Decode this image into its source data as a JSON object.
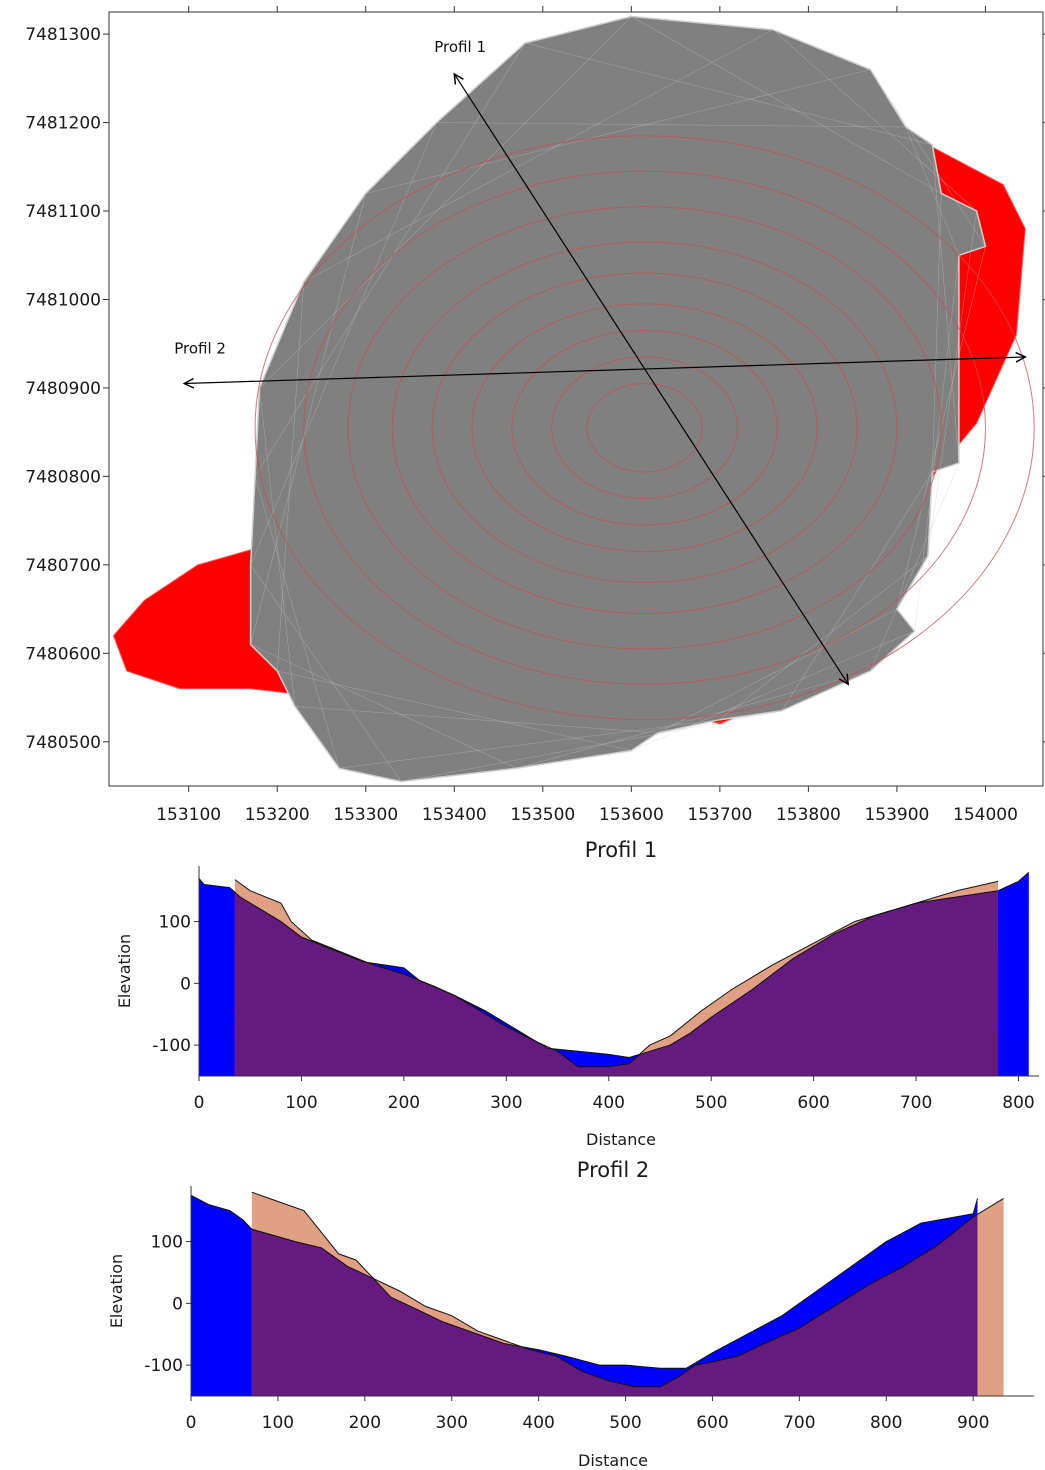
{
  "colors": {
    "pit_fill": "#808080",
    "pit_mesh": "#c8c8c8",
    "pit_contours": "#c0504d",
    "outer_shell": "#ff0000",
    "profile_a_top": "#0000ff",
    "profile_b_top": "#e0a084",
    "overlap": "#641a7e",
    "arrow": "#000000"
  },
  "chart_data": [
    {
      "type": "map",
      "xlim": [
        153010,
        154065
      ],
      "ylim": [
        7480450,
        7481325
      ],
      "xticks": [
        153100,
        153200,
        153300,
        153400,
        153500,
        153600,
        153700,
        153800,
        153900,
        154000
      ],
      "xtick_labels": [
        "153100",
        "153200",
        "153300",
        "153400",
        "153500",
        "153600",
        "153700",
        "153800",
        "153900",
        "154000"
      ],
      "yticks": [
        7480500,
        7480600,
        7480700,
        7480800,
        7480900,
        7481000,
        7481100,
        7481200,
        7481300
      ],
      "ytick_labels": [
        "7480500",
        "7480600",
        "7480700",
        "7480800",
        "7480900",
        "7481000",
        "7481100",
        "7481200",
        "7481300"
      ],
      "profiles": [
        {
          "name": "Profil 1",
          "from": [
            153400,
            7481255
          ],
          "to": [
            153845,
            7480565
          ]
        },
        {
          "name": "Profil 2",
          "from": [
            153095,
            7480905
          ],
          "to": [
            154045,
            7480935
          ]
        }
      ],
      "red_outline": [
        [
          153935,
          7481175
        ],
        [
          154020,
          7481130
        ],
        [
          154045,
          7481080
        ],
        [
          154035,
          7480960
        ],
        [
          153990,
          7480860
        ],
        [
          153940,
          7480800
        ],
        [
          153860,
          7480590
        ],
        [
          153700,
          7480520
        ],
        [
          153620,
          7480545
        ],
        [
          153300,
          7480545
        ],
        [
          153170,
          7480560
        ],
        [
          153090,
          7480560
        ],
        [
          153030,
          7480580
        ],
        [
          153015,
          7480620
        ],
        [
          153050,
          7480660
        ],
        [
          153110,
          7480700
        ],
        [
          153180,
          7480720
        ],
        [
          153260,
          7480760
        ],
        [
          153600,
          7481000
        ]
      ],
      "grey_outline": [
        [
          153600,
          7481320
        ],
        [
          153760,
          7481305
        ],
        [
          153870,
          7481260
        ],
        [
          153910,
          7481195
        ],
        [
          153940,
          7481175
        ],
        [
          153950,
          7481120
        ],
        [
          153990,
          7481100
        ],
        [
          154000,
          7481060
        ],
        [
          153970,
          7481050
        ],
        [
          153970,
          7480815
        ],
        [
          153940,
          7480805
        ],
        [
          153935,
          7480710
        ],
        [
          153900,
          7480650
        ],
        [
          153920,
          7480625
        ],
        [
          153870,
          7480580
        ],
        [
          153770,
          7480535
        ],
        [
          153700,
          7480525
        ],
        [
          153630,
          7480510
        ],
        [
          153600,
          7480490
        ],
        [
          153470,
          7480470
        ],
        [
          153340,
          7480455
        ],
        [
          153270,
          7480470
        ],
        [
          153220,
          7480540
        ],
        [
          153200,
          7480580
        ],
        [
          153170,
          7480610
        ],
        [
          153170,
          7480700
        ],
        [
          153175,
          7480800
        ],
        [
          153180,
          7480900
        ],
        [
          153230,
          7481020
        ],
        [
          153300,
          7481120
        ],
        [
          153380,
          7481200
        ],
        [
          153480,
          7481290
        ]
      ],
      "contour_rings": [
        {
          "cx": 153615,
          "cy": 7480855,
          "rx": 440,
          "ry": 330
        },
        {
          "cx": 153615,
          "cy": 7480855,
          "rx": 385,
          "ry": 290
        },
        {
          "cx": 153615,
          "cy": 7480855,
          "rx": 335,
          "ry": 250
        },
        {
          "cx": 153615,
          "cy": 7480855,
          "rx": 285,
          "ry": 210
        },
        {
          "cx": 153615,
          "cy": 7480855,
          "rx": 240,
          "ry": 175
        },
        {
          "cx": 153615,
          "cy": 7480855,
          "rx": 195,
          "ry": 140
        },
        {
          "cx": 153615,
          "cy": 7480855,
          "rx": 150,
          "ry": 110
        },
        {
          "cx": 153615,
          "cy": 7480855,
          "rx": 105,
          "ry": 80
        },
        {
          "cx": 153615,
          "cy": 7480855,
          "rx": 65,
          "ry": 50
        }
      ]
    },
    {
      "type": "area",
      "title": "Profil 1",
      "xlabel": "Distance",
      "ylabel": "Elevation",
      "xlim": [
        0,
        820
      ],
      "ylim": [
        -150,
        190
      ],
      "xticks": [
        0,
        100,
        200,
        300,
        400,
        500,
        600,
        700,
        800
      ],
      "xtick_labels": [
        "0",
        "100",
        "200",
        "300",
        "400",
        "500",
        "600",
        "700",
        "800"
      ],
      "yticks": [
        -100,
        0,
        100
      ],
      "ytick_labels": [
        "-100",
        "0",
        "100"
      ],
      "base": -150,
      "series": [
        {
          "x": [
            0,
            5,
            15,
            30,
            40,
            60,
            80,
            100,
            130,
            160,
            200,
            215,
            250,
            280,
            310,
            340,
            370,
            400,
            420,
            440,
            460,
            480,
            500,
            540,
            580,
            620,
            660,
            700,
            740,
            780,
            800,
            810
          ],
          "y": [
            170,
            160,
            158,
            155,
            140,
            120,
            100,
            75,
            55,
            35,
            25,
            5,
            -20,
            -45,
            -75,
            -105,
            -110,
            -115,
            -120,
            -110,
            -100,
            -80,
            -55,
            -10,
            40,
            80,
            110,
            130,
            140,
            150,
            165,
            180
          ]
        },
        {
          "x": [
            35,
            50,
            80,
            90,
            110,
            140,
            170,
            200,
            230,
            250,
            270,
            300,
            330,
            350,
            370,
            400,
            420,
            440,
            460,
            490,
            520,
            560,
            600,
            640,
            660,
            700,
            740,
            780
          ],
          "y": [
            168,
            150,
            130,
            100,
            70,
            50,
            30,
            15,
            -5,
            -20,
            -40,
            -70,
            -95,
            -110,
            -135,
            -135,
            -130,
            -100,
            -85,
            -45,
            -10,
            30,
            65,
            100,
            110,
            130,
            150,
            165
          ]
        }
      ]
    },
    {
      "type": "area",
      "title": "Profil 2",
      "xlabel": "Distance",
      "ylabel": "Elevation",
      "xlim": [
        0,
        970
      ],
      "ylim": [
        -150,
        190
      ],
      "xticks": [
        0,
        100,
        200,
        300,
        400,
        500,
        600,
        700,
        800,
        900
      ],
      "xtick_labels": [
        "0",
        "100",
        "200",
        "300",
        "400",
        "500",
        "600",
        "700",
        "800",
        "900"
      ],
      "yticks": [
        -100,
        0,
        100
      ],
      "ytick_labels": [
        "-100",
        "0",
        "100"
      ],
      "base": -150,
      "series": [
        {
          "x": [
            0,
            20,
            45,
            60,
            70,
            120,
            150,
            180,
            210,
            230,
            260,
            290,
            320,
            360,
            400,
            430,
            470,
            500,
            540,
            570,
            600,
            640,
            680,
            720,
            760,
            800,
            840,
            880,
            900,
            905
          ],
          "y": [
            175,
            160,
            150,
            135,
            120,
            100,
            90,
            60,
            40,
            10,
            -10,
            -30,
            -45,
            -65,
            -75,
            -85,
            -100,
            -100,
            -105,
            -105,
            -80,
            -50,
            -20,
            20,
            60,
            100,
            130,
            140,
            145,
            170
          ]
        },
        {
          "x": [
            70,
            90,
            130,
            170,
            190,
            210,
            240,
            270,
            300,
            330,
            360,
            390,
            420,
            450,
            480,
            510,
            540,
            560,
            580,
            600,
            630,
            660,
            700,
            740,
            780,
            820,
            860,
            900,
            935
          ],
          "y": [
            180,
            170,
            150,
            80,
            70,
            40,
            20,
            -5,
            -20,
            -45,
            -60,
            -75,
            -85,
            -110,
            -125,
            -135,
            -135,
            -120,
            -100,
            -95,
            -85,
            -65,
            -40,
            -5,
            30,
            60,
            95,
            140,
            170
          ]
        }
      ]
    }
  ],
  "labels": {
    "profile1": "Profil 1",
    "profile2": "Profil 2"
  }
}
